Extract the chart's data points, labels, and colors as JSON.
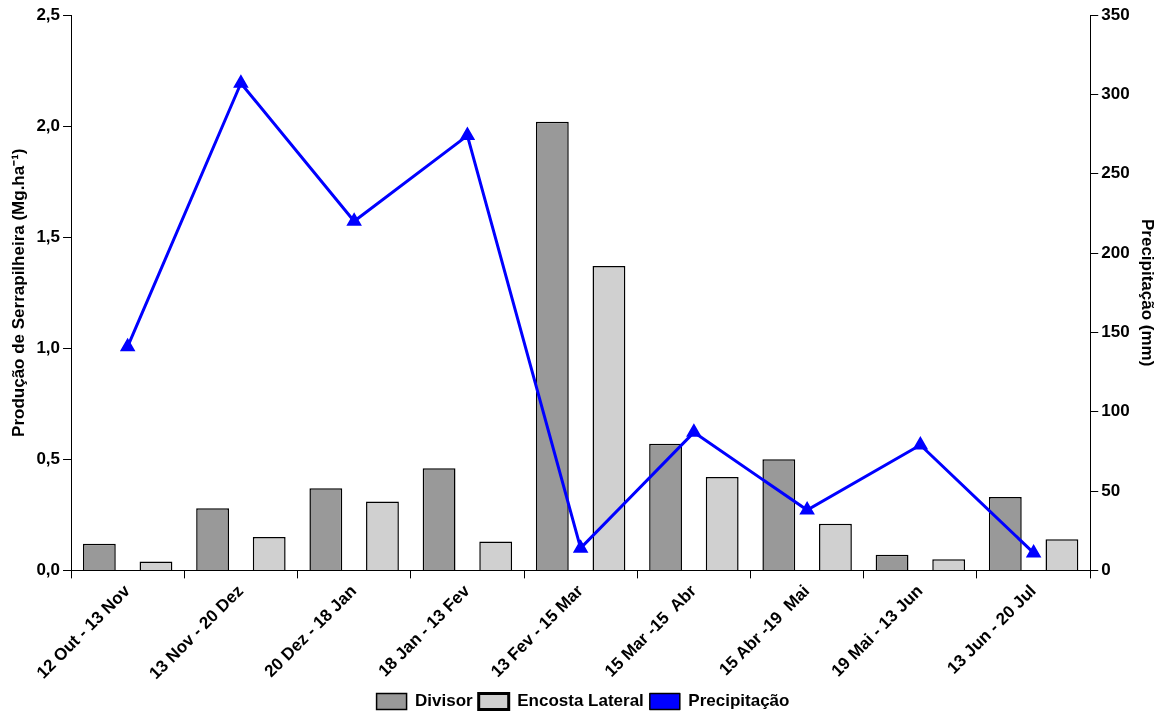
{
  "chart_data": {
    "type": "bar",
    "ylabel": "Produção de Serrapilheira (Mg.ha⁻¹)",
    "y2label": "Precipitação (mm)",
    "categories": [
      "12 Out - 13 Nov",
      "13 Nov - 20 Dez",
      "20 Dez - 18 Jan",
      "18 Jan - 13 Fev",
      "13 Fev - 15 Mar",
      "15 Mar -15  Abr",
      "15 Abr -19  Mai",
      "19 Mai - 13 Jun",
      "13 Jun - 20 Jul"
    ],
    "series": [
      {
        "name": "Divisor",
        "color": "#999999",
        "values": [
          0.12,
          0.28,
          0.37,
          0.46,
          2.02,
          0.57,
          0.5,
          0.07,
          0.33
        ]
      },
      {
        "name": "Encosta Lateral",
        "color": "#d0d0d0",
        "values": [
          0.04,
          0.15,
          0.31,
          0.13,
          1.37,
          0.42,
          0.21,
          0.05,
          0.14
        ]
      },
      {
        "name": "Precipitação",
        "type": "line",
        "axis": "y2",
        "color": "#0000ff",
        "marker": "triangle",
        "values": [
          141,
          307,
          220,
          274,
          14,
          87,
          38,
          79,
          11
        ]
      }
    ],
    "ylim": [
      0,
      2.5
    ],
    "yticks": [
      {
        "value": 0,
        "label": "0,0"
      },
      {
        "value": 0.5,
        "label": "0,5"
      },
      {
        "value": 1,
        "label": "1,0"
      },
      {
        "value": 1.5,
        "label": "1,5"
      },
      {
        "value": 2,
        "label": "2,0"
      },
      {
        "value": 2.5,
        "label": "2,5"
      }
    ],
    "y2lim": [
      0,
      350
    ],
    "y2ticks": [
      0,
      50,
      100,
      150,
      200,
      250,
      300,
      350
    ],
    "legend": "bottom",
    "grid": false
  }
}
